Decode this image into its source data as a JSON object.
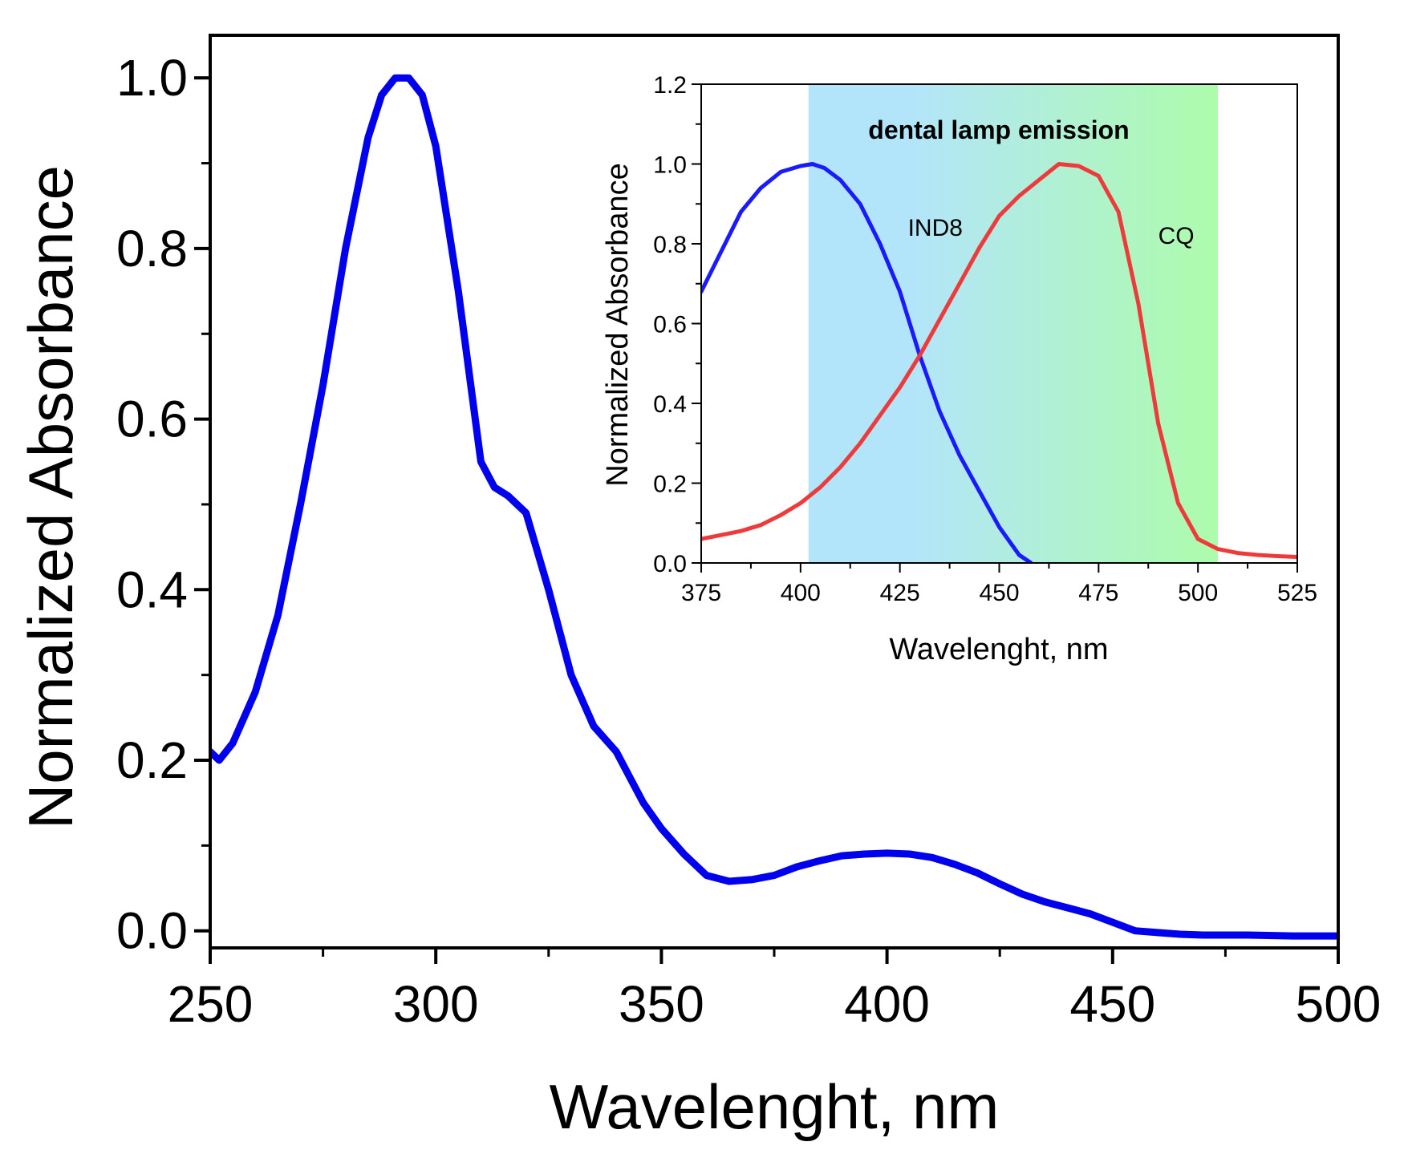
{
  "chart_data": [
    {
      "type": "line",
      "id": "main",
      "xlabel": "Wavelenght, nm",
      "ylabel": "Normalized Absorbance",
      "xlim": [
        250,
        500
      ],
      "ylim": [
        -0.02,
        1.05
      ],
      "xticks": [
        250,
        300,
        350,
        400,
        450,
        500
      ],
      "xtick_labels": [
        "250",
        "300",
        "350",
        "400",
        "450",
        "500"
      ],
      "yticks": [
        0.0,
        0.2,
        0.4,
        0.6,
        0.8,
        1.0
      ],
      "ytick_labels": [
        "0.0",
        "0.2",
        "0.4",
        "0.6",
        "0.8",
        "1.0"
      ],
      "series": [
        {
          "name": "IND8",
          "color": "#0000ee",
          "x": [
            250,
            252,
            255,
            260,
            265,
            270,
            275,
            280,
            285,
            288,
            291,
            294,
            297,
            300,
            305,
            310,
            313,
            316,
            320,
            325,
            330,
            335,
            340,
            343,
            346,
            350,
            355,
            360,
            365,
            370,
            375,
            380,
            385,
            390,
            395,
            400,
            405,
            410,
            415,
            420,
            425,
            430,
            435,
            440,
            445,
            450,
            455,
            460,
            465,
            470,
            480,
            490,
            500
          ],
          "y": [
            0.21,
            0.2,
            0.22,
            0.28,
            0.37,
            0.5,
            0.64,
            0.8,
            0.93,
            0.98,
            1.0,
            1.0,
            0.98,
            0.92,
            0.75,
            0.55,
            0.52,
            0.51,
            0.49,
            0.4,
            0.3,
            0.24,
            0.21,
            0.18,
            0.15,
            0.12,
            0.09,
            0.065,
            0.058,
            0.06,
            0.065,
            0.075,
            0.082,
            0.088,
            0.09,
            0.091,
            0.09,
            0.086,
            0.078,
            0.068,
            0.055,
            0.043,
            0.034,
            0.027,
            0.02,
            0.01,
            0.0,
            -0.002,
            -0.004,
            -0.005,
            -0.005,
            -0.006,
            -0.006
          ]
        }
      ]
    },
    {
      "type": "line",
      "id": "inset",
      "xlabel": "Wavelenght, nm",
      "ylabel": "Normalized Absorbance",
      "xlim": [
        375,
        525
      ],
      "ylim": [
        0,
        1.2
      ],
      "xticks": [
        375,
        400,
        425,
        450,
        475,
        500,
        525
      ],
      "xtick_labels": [
        "375",
        "400",
        "425",
        "450",
        "475",
        "500",
        "525"
      ],
      "yticks": [
        0.0,
        0.2,
        0.4,
        0.6,
        0.8,
        1.0,
        1.2
      ],
      "ytick_labels": [
        "0.0",
        "0.2",
        "0.4",
        "0.6",
        "0.8",
        "1.0",
        "1.2"
      ],
      "annotation": {
        "text": "dental lamp emission",
        "x_start": 402,
        "x_end": 505,
        "color_start": "#b3e5fa",
        "color_end": "#adfcab"
      },
      "series": [
        {
          "name": "IND8",
          "color": "#1a1aff",
          "label_x": 427,
          "label_y": 0.82,
          "x": [
            375,
            380,
            385,
            390,
            395,
            400,
            403,
            406,
            410,
            415,
            420,
            425,
            430,
            435,
            440,
            445,
            450,
            455,
            458
          ],
          "y": [
            0.68,
            0.78,
            0.88,
            0.94,
            0.98,
            0.995,
            1.0,
            0.99,
            0.96,
            0.9,
            0.8,
            0.68,
            0.52,
            0.38,
            0.27,
            0.18,
            0.09,
            0.02,
            0.0
          ]
        },
        {
          "name": "CQ",
          "color": "#ee3a3a",
          "label_x": 490,
          "label_y": 0.8,
          "x": [
            375,
            380,
            385,
            390,
            395,
            400,
            405,
            410,
            415,
            420,
            425,
            430,
            435,
            440,
            445,
            450,
            455,
            460,
            465,
            470,
            475,
            480,
            485,
            490,
            495,
            500,
            505,
            510,
            515,
            520,
            525
          ],
          "y": [
            0.06,
            0.07,
            0.08,
            0.095,
            0.12,
            0.15,
            0.19,
            0.24,
            0.3,
            0.37,
            0.44,
            0.52,
            0.61,
            0.7,
            0.79,
            0.87,
            0.92,
            0.96,
            1.0,
            0.995,
            0.97,
            0.88,
            0.65,
            0.35,
            0.15,
            0.06,
            0.035,
            0.025,
            0.02,
            0.017,
            0.015
          ]
        }
      ]
    }
  ]
}
